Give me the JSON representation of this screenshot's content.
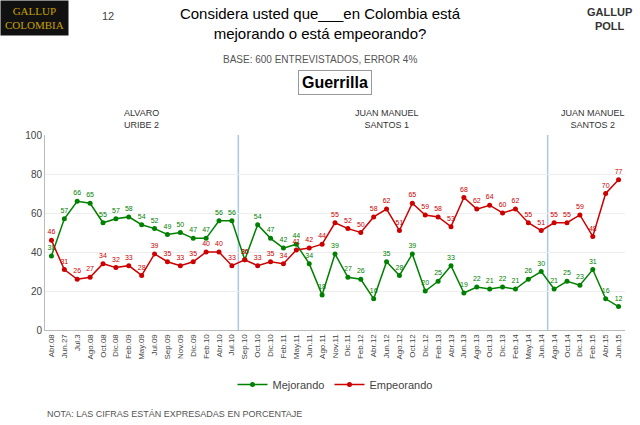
{
  "chart_data": {
    "type": "line",
    "title": "Considera usted que___en Colombia está\nmejorando o está empeorando?",
    "subtitle": "BASE: 600 ENTREVISTADOS, ERROR 4%",
    "categories": [
      "Abr.08",
      "Jun.27",
      "Jul.3",
      "Ago.08",
      "Oct.08",
      "Dic.08",
      "Feb.09",
      "May.09",
      "Jul.09",
      "Sep.09",
      "Nov.09",
      "Dic.09",
      "Feb.10",
      "Abr.10",
      "Jul.10",
      "Sep.10",
      "Oct.10",
      "Dic.10",
      "Feb.11",
      "May.11",
      "Jun.11",
      "Ago.11",
      "Nov.11",
      "Dic.11",
      "Feb.12",
      "Abr.12",
      "Jun.12",
      "Ago.12",
      "Oct.12",
      "Dic.12",
      "Feb.13",
      "Abr.13",
      "Jun.13",
      "Ago.13",
      "Oct.13",
      "Dic.13",
      "Feb.14",
      "May.14",
      "Jun.14",
      "Ago.14",
      "Oct.14",
      "Dic.14",
      "Feb.15",
      "Abr.15",
      "Jun.15"
    ],
    "series": [
      {
        "name": "Mejorando",
        "color": "#008000",
        "marker": "circle",
        "values": [
          38,
          57,
          66,
          65,
          55,
          57,
          58,
          54,
          52,
          49,
          50,
          47,
          47,
          56,
          56,
          36,
          54,
          47,
          42,
          44,
          34,
          18,
          39,
          27,
          26,
          16,
          35,
          28,
          39,
          20,
          25,
          33,
          19,
          22,
          21,
          22,
          21,
          26,
          30,
          21,
          25,
          23,
          31,
          16,
          12
        ]
      },
      {
        "name": "Empeorando",
        "color": "#cc0000",
        "marker": "circle",
        "values": [
          46,
          31,
          26,
          27,
          34,
          32,
          33,
          28,
          39,
          35,
          33,
          35,
          40,
          40,
          33,
          36,
          33,
          35,
          34,
          41,
          42,
          44,
          55,
          52,
          50,
          58,
          62,
          51,
          65,
          59,
          58,
          53,
          68,
          62,
          64,
          60,
          62,
          55,
          51,
          55,
          55,
          59,
          48,
          70,
          77
        ]
      }
    ],
    "ylim": [
      0,
      100
    ],
    "yticks": [
      0,
      20,
      40,
      60,
      80,
      100
    ],
    "grid": true,
    "data_labels": true,
    "legend": "bottom",
    "dividers": [
      14.5,
      38.5
    ],
    "annotations": [
      {
        "text": "Guerrilla"
      },
      {
        "text": "GALLUP\nCOLOMBIA"
      },
      {
        "text": "12"
      },
      {
        "text": "GALLUP\nPOLL"
      },
      {
        "text": "NOTA: LAS CIFRAS ESTÁN EXPRESADAS EN PORCENTAJE"
      },
      {
        "text": "ALVARO\nURIBE 2",
        "x": "May.09"
      },
      {
        "text": "JUAN MANUEL\nSANTOS 1",
        "x": "Jun.12"
      },
      {
        "text": "JUAN MANUEL\nSANTOS 2",
        "x": "Feb.15"
      }
    ]
  }
}
